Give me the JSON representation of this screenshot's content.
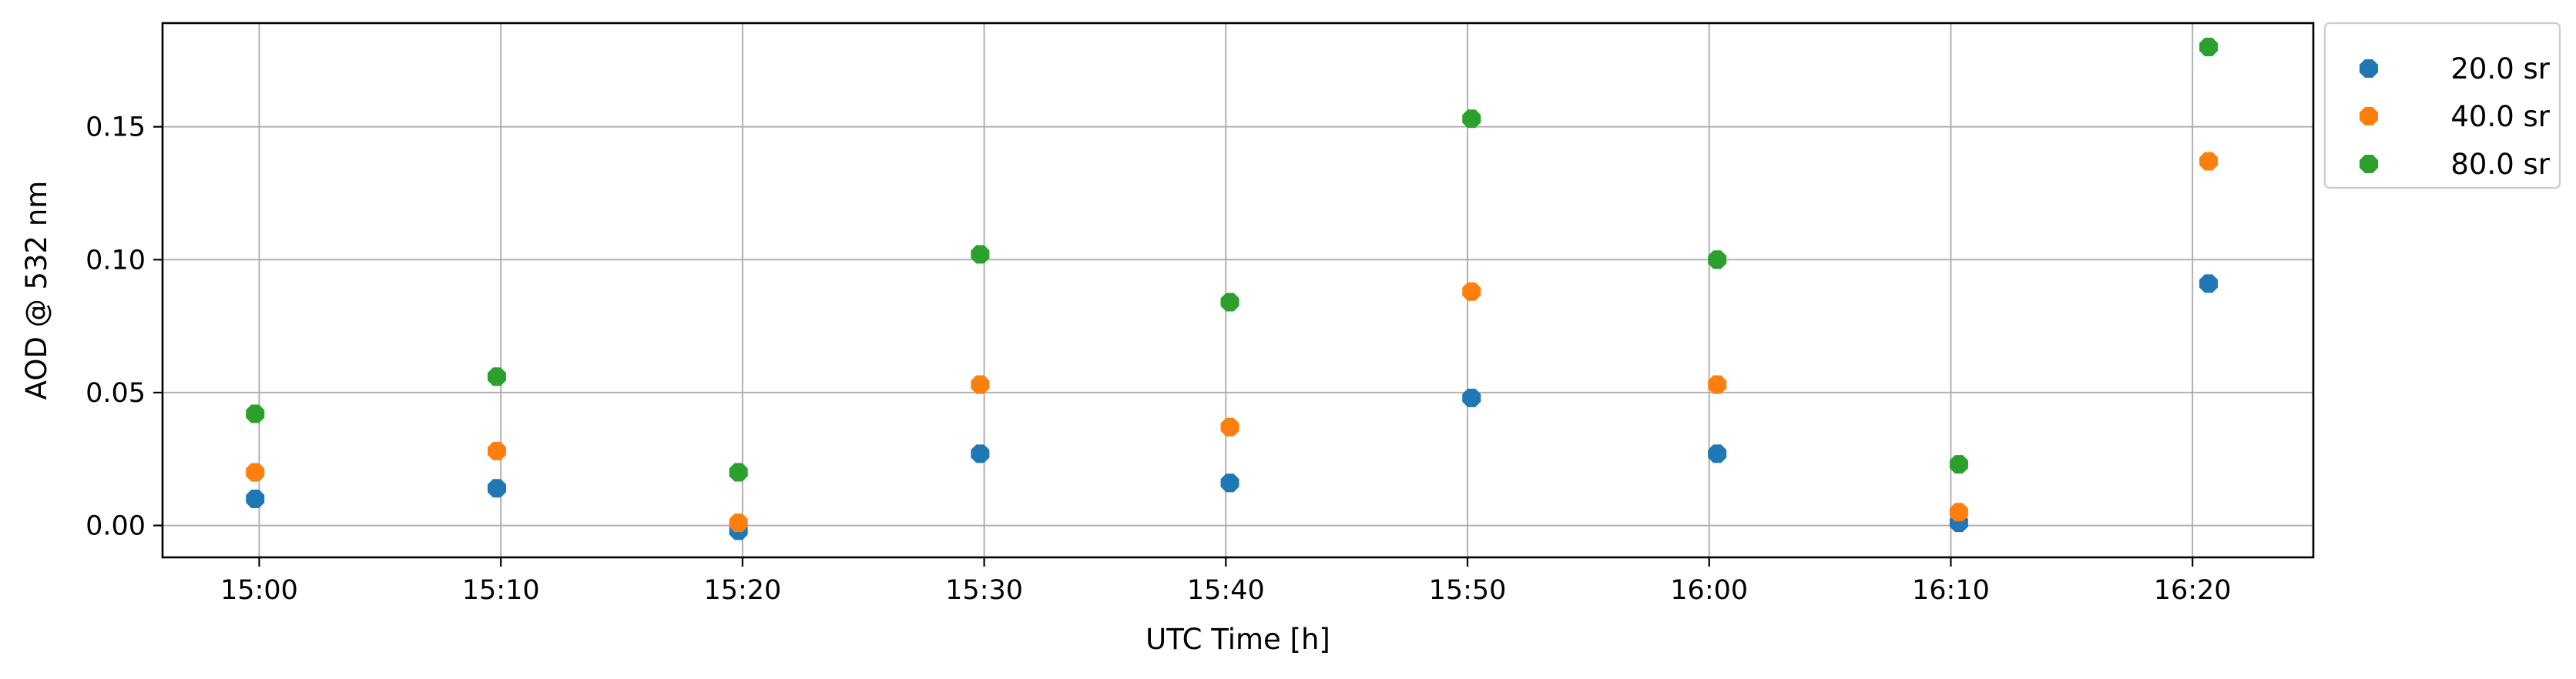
{
  "chart_data": {
    "type": "scatter",
    "title": "",
    "xlabel": "UTC Time [h]",
    "ylabel": "AOD @ 532 nm",
    "x_tick_labels": [
      "15:00",
      "15:10",
      "15:20",
      "15:30",
      "15:40",
      "15:50",
      "16:00",
      "16:10",
      "16:20"
    ],
    "x_tick_values": [
      "15:00",
      "15:10",
      "15:20",
      "15:30",
      "15:40",
      "15:50",
      "16:00",
      "16:10",
      "16:20"
    ],
    "y_tick_labels": [
      "0.00",
      "0.05",
      "0.10",
      "0.15"
    ],
    "y_tick_values": [
      0.0,
      0.05,
      0.1,
      0.15
    ],
    "xlim": [
      "14:56",
      "16:25"
    ],
    "ylim": [
      -0.012,
      0.189
    ],
    "grid": true,
    "legend_position": "outside-top-right",
    "x": [
      "14:59:50",
      "15:09:50",
      "15:19:50",
      "15:29:50",
      "15:40:10",
      "15:50:10",
      "16:00:20",
      "16:10:20",
      "16:20:40"
    ],
    "series": [
      {
        "name": "20.0 sr",
        "color": "#1f77b4",
        "values": [
          0.01,
          0.014,
          -0.002,
          0.027,
          0.016,
          0.048,
          0.027,
          0.001,
          0.091
        ]
      },
      {
        "name": "40.0 sr",
        "color": "#ff7f0e",
        "values": [
          0.02,
          0.028,
          0.001,
          0.053,
          0.037,
          0.088,
          0.053,
          0.005,
          0.137
        ]
      },
      {
        "name": "80.0 sr",
        "color": "#2ca02c",
        "values": [
          0.042,
          0.056,
          0.02,
          0.102,
          0.084,
          0.153,
          0.1,
          0.023,
          0.18
        ]
      }
    ]
  }
}
